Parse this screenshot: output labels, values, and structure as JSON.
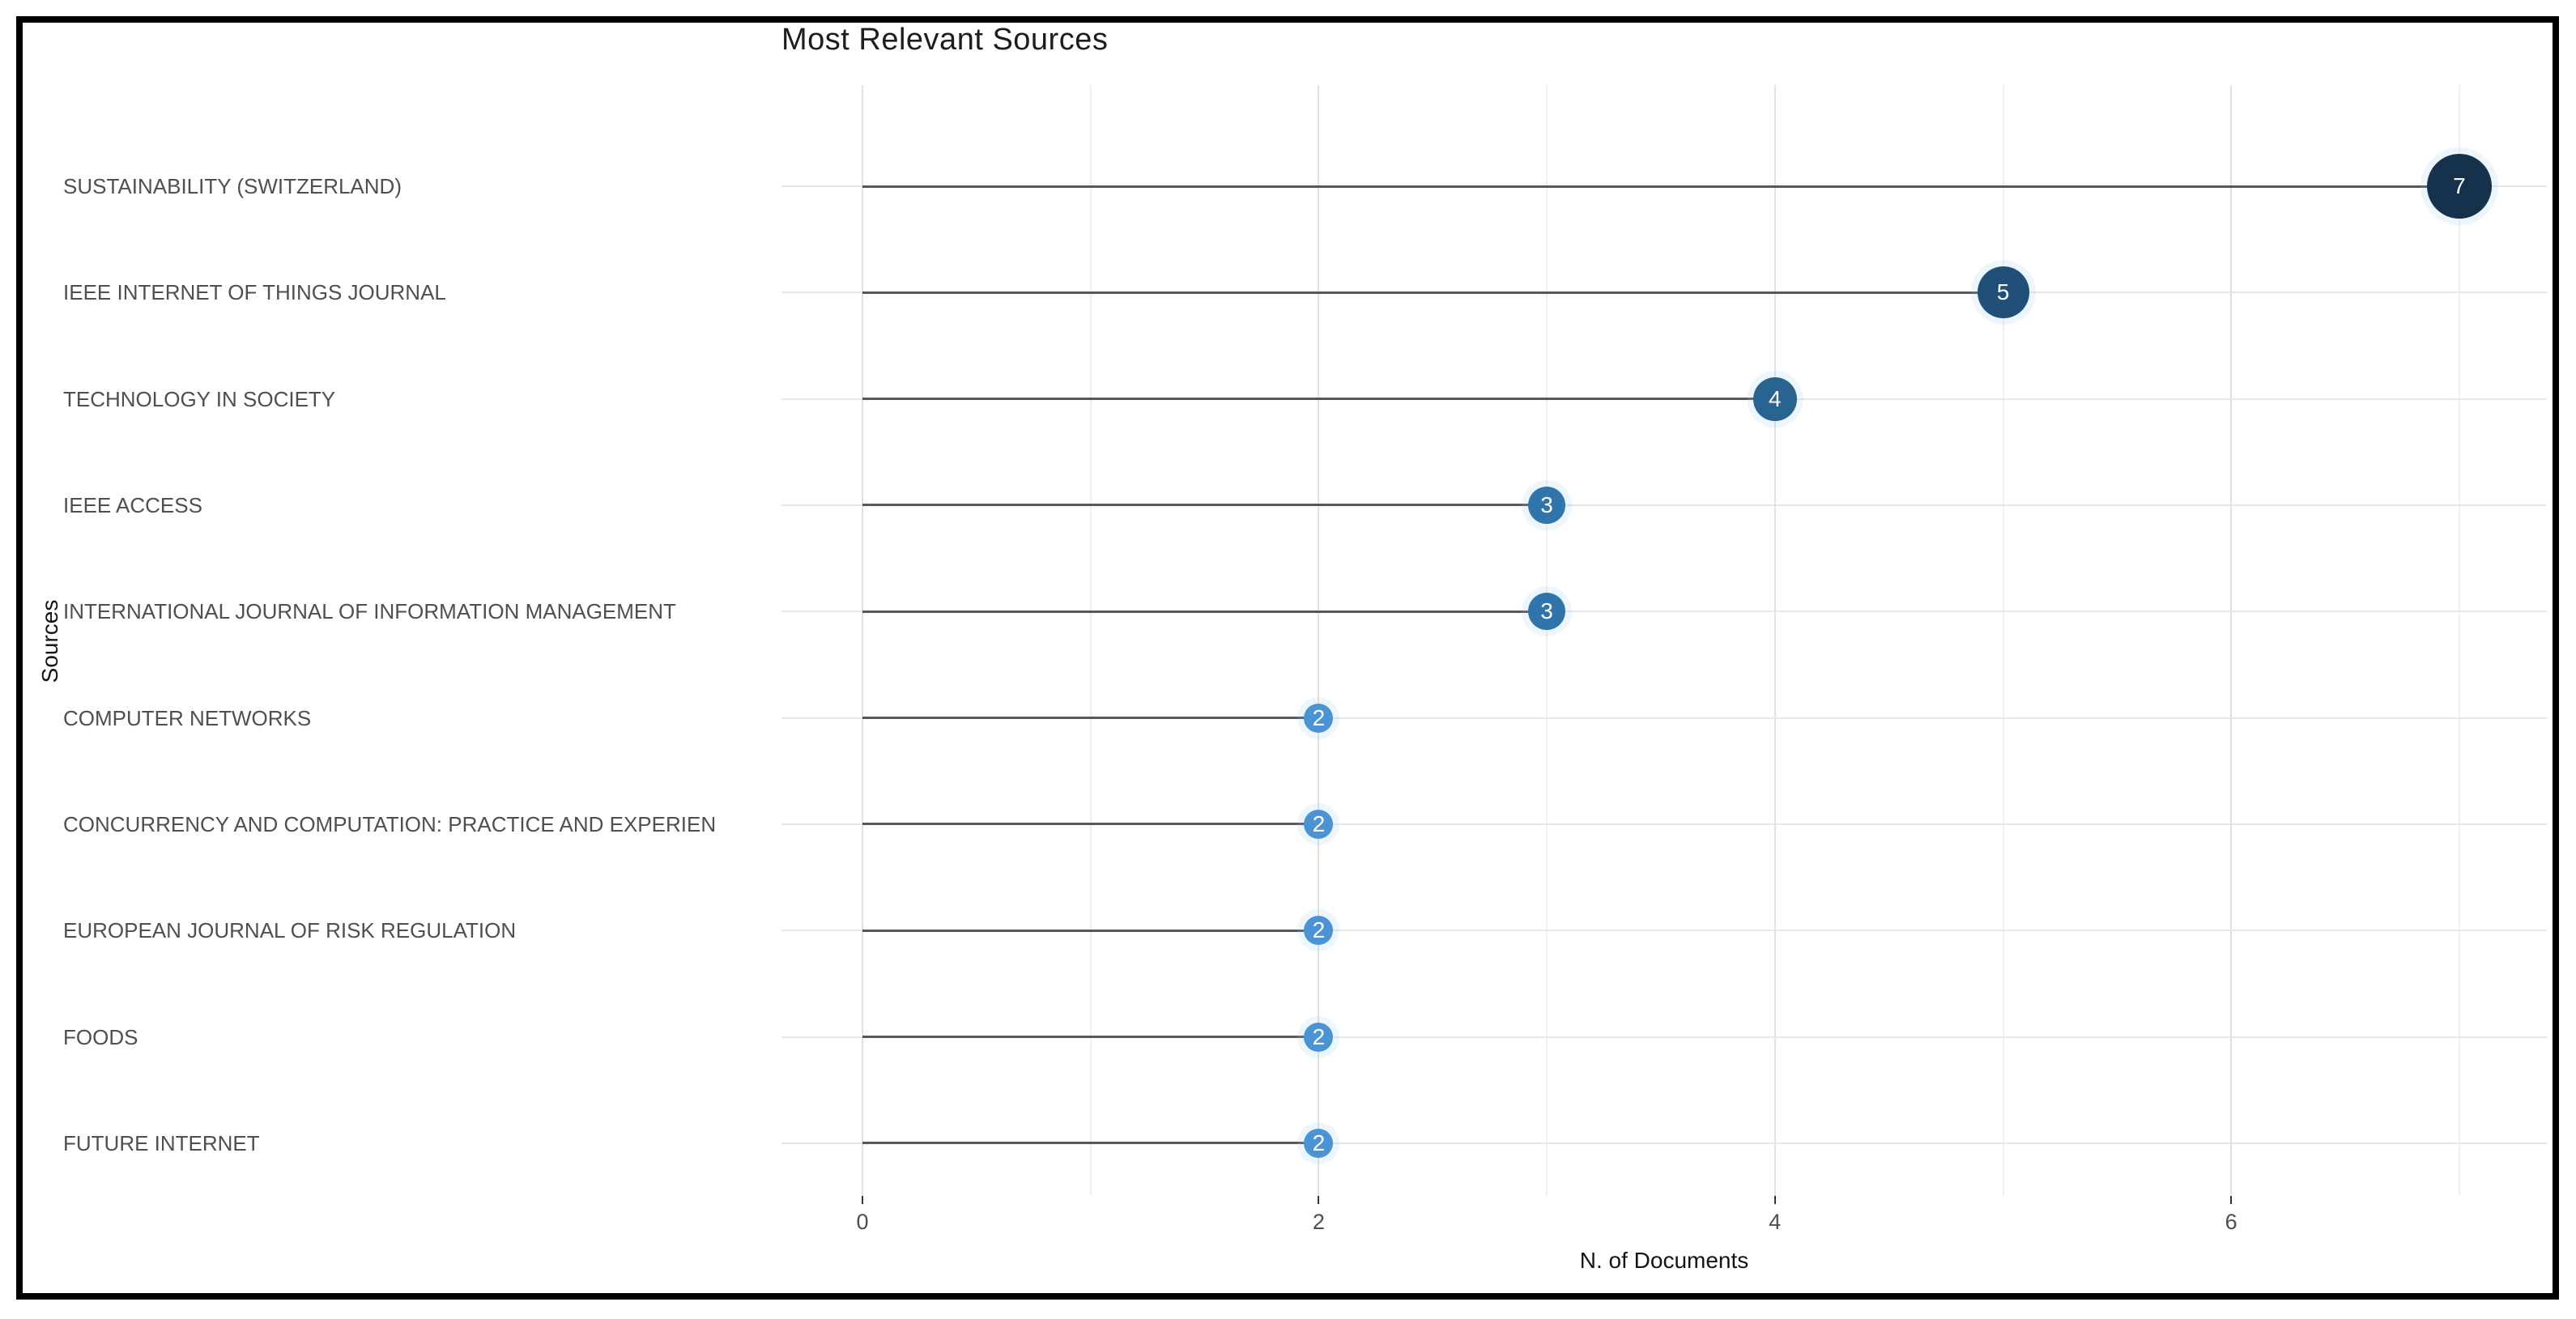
{
  "chart_data": {
    "type": "scatter",
    "style": "lollipop",
    "title": "Most Relevant Sources",
    "xlabel": "N. of Documents",
    "ylabel": "Sources",
    "categories": [
      "SUSTAINABILITY (SWITZERLAND)",
      "IEEE INTERNET OF THINGS JOURNAL",
      "TECHNOLOGY IN SOCIETY",
      "IEEE ACCESS",
      "INTERNATIONAL JOURNAL OF INFORMATION MANAGEMENT",
      "COMPUTER NETWORKS",
      "CONCURRENCY AND COMPUTATION: PRACTICE AND EXPERIEN",
      "EUROPEAN JOURNAL OF RISK REGULATION",
      "FOODS",
      "FUTURE INTERNET"
    ],
    "values": [
      7,
      5,
      4,
      3,
      3,
      2,
      2,
      2,
      2,
      2
    ],
    "xlim": [
      -0.35,
      7.38
    ],
    "x_major_ticks": [
      0,
      2,
      4,
      6
    ],
    "x_minor_gridlines": [
      1,
      3,
      5,
      7
    ],
    "grid": true,
    "legend": false,
    "dot_style_by_value": {
      "2": {
        "color": "#4a94d5",
        "radius": 18
      },
      "3": {
        "color": "#2f75ab",
        "radius": 23
      },
      "4": {
        "color": "#28648f",
        "radius": 27
      },
      "5": {
        "color": "#204f78",
        "radius": 32
      },
      "7": {
        "color": "#16314c",
        "radius": 40
      }
    },
    "stem_color": "#575757",
    "dot_number_color": "#ffffff"
  },
  "frame": {
    "border_color": "#000000",
    "background": "#ffffff"
  }
}
